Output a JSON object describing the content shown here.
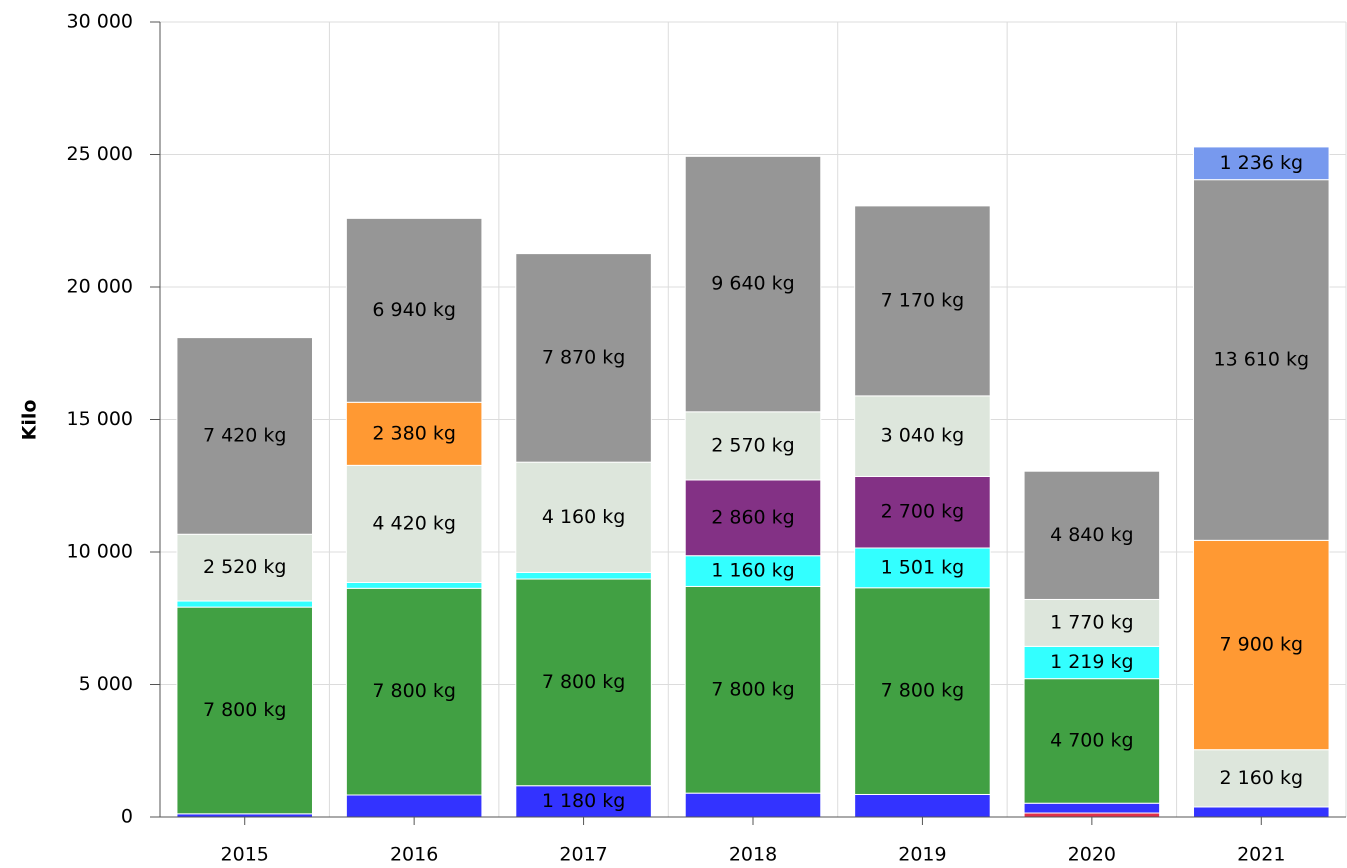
{
  "chart_data": {
    "type": "stacked_bar",
    "y_label": "Kilo",
    "categories": [
      "2015",
      "2016",
      "2017",
      "2018",
      "2019",
      "2020",
      "2021"
    ],
    "series": [
      {
        "color": "#e0304a",
        "values": [
          0,
          0,
          0,
          0,
          0,
          150,
          0
        ],
        "value_labels": [
          null,
          null,
          null,
          null,
          null,
          null,
          null
        ]
      },
      {
        "color": "#3333ff",
        "values": [
          120,
          830,
          1180,
          900,
          850,
          370,
          380
        ],
        "value_labels": [
          null,
          null,
          "1 180 kg",
          null,
          null,
          null,
          null
        ]
      },
      {
        "color": "#41a043",
        "values": [
          7800,
          7800,
          7800,
          7800,
          7800,
          4700,
          0
        ],
        "value_labels": [
          "7 800 kg",
          "7 800 kg",
          "7 800 kg",
          "7 800 kg",
          "7 800 kg",
          "4 700 kg",
          null
        ]
      },
      {
        "color": "#33ffff",
        "values": [
          230,
          220,
          250,
          1160,
          1501,
          1219,
          0
        ],
        "value_labels": [
          null,
          null,
          null,
          "1 160 kg",
          "1 501 kg",
          "1 219 kg",
          null
        ]
      },
      {
        "color": "#833185",
        "values": [
          0,
          0,
          0,
          2860,
          2700,
          0,
          0
        ],
        "value_labels": [
          null,
          null,
          null,
          "2 860 kg",
          "2 700 kg",
          null,
          null
        ]
      },
      {
        "color": "#dde6dc",
        "values": [
          2520,
          4420,
          4160,
          2570,
          3040,
          1770,
          2160
        ],
        "value_labels": [
          "2 520 kg",
          "4 420 kg",
          "4 160 kg",
          "2 570 kg",
          "3 040 kg",
          "1 770 kg",
          "2 160 kg"
        ]
      },
      {
        "color": "#ff9933",
        "values": [
          0,
          2380,
          0,
          0,
          0,
          0,
          7900
        ],
        "value_labels": [
          null,
          "2 380 kg",
          null,
          null,
          null,
          null,
          "7 900 kg"
        ]
      },
      {
        "color": "#969696",
        "values": [
          7420,
          6940,
          7870,
          9640,
          7170,
          4840,
          13610
        ],
        "value_labels": [
          "7 420 kg",
          "6 940 kg",
          "7 870 kg",
          "9 640 kg",
          "7 170 kg",
          "4 840 kg",
          "13 610 kg"
        ]
      },
      {
        "color": "#7799ee",
        "values": [
          0,
          0,
          0,
          0,
          0,
          0,
          1236
        ],
        "value_labels": [
          null,
          null,
          null,
          null,
          null,
          null,
          "1 236 kg"
        ]
      }
    ],
    "ylim": [
      0,
      30000
    ],
    "yticks": [
      0,
      {
        "value": 5000,
        "label": "5 000"
      },
      {
        "value": 10000,
        "label": "10 000"
      },
      {
        "value": 15000,
        "label": "15 000"
      },
      {
        "value": 20000,
        "label": "20 000"
      },
      {
        "value": 25000,
        "label": "25 000"
      },
      {
        "value": 30000,
        "label": "30 000"
      }
    ],
    "grid": true
  }
}
